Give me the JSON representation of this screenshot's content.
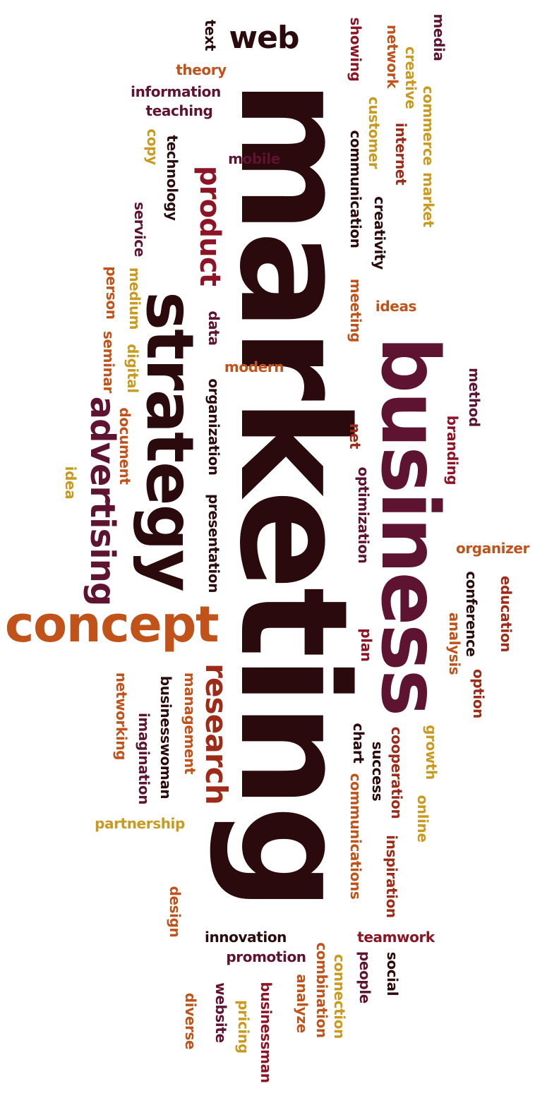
{
  "palette": {
    "black": "#2a0a0c",
    "maroon": "#5e1430",
    "crimson": "#8c1424",
    "red": "#9e2a18",
    "orange": "#c0521a",
    "gold": "#c99a1f"
  },
  "words": [
    {
      "text": "marketing",
      "color": "black",
      "emphasis": "largest"
    },
    {
      "text": "business",
      "color": "maroon",
      "emphasis": "large"
    },
    {
      "text": "strategy",
      "color": "black",
      "emphasis": "large"
    },
    {
      "text": "concept",
      "color": "orange",
      "emphasis": "large"
    },
    {
      "text": "advertising",
      "color": "maroon",
      "emphasis": "medium"
    },
    {
      "text": "research",
      "color": "red",
      "emphasis": "medium"
    },
    {
      "text": "product",
      "color": "crimson",
      "emphasis": "medium"
    },
    {
      "text": "web",
      "color": "black",
      "emphasis": "medium"
    },
    {
      "text": "media",
      "color": "maroon"
    },
    {
      "text": "network",
      "color": "orange"
    },
    {
      "text": "creative",
      "color": "gold"
    },
    {
      "text": "showing",
      "color": "crimson"
    },
    {
      "text": "text",
      "color": "black"
    },
    {
      "text": "commerce",
      "color": "gold"
    },
    {
      "text": "market",
      "color": "gold"
    },
    {
      "text": "internet",
      "color": "red"
    },
    {
      "text": "customer",
      "color": "gold"
    },
    {
      "text": "communication",
      "color": "black"
    },
    {
      "text": "creativity",
      "color": "black"
    },
    {
      "text": "theory",
      "color": "orange"
    },
    {
      "text": "information",
      "color": "maroon"
    },
    {
      "text": "teaching",
      "color": "maroon"
    },
    {
      "text": "copy",
      "color": "gold"
    },
    {
      "text": "technology",
      "color": "black"
    },
    {
      "text": "mobile",
      "color": "maroon"
    },
    {
      "text": "service",
      "color": "maroon"
    },
    {
      "text": "person",
      "color": "orange"
    },
    {
      "text": "medium",
      "color": "gold"
    },
    {
      "text": "data",
      "color": "maroon"
    },
    {
      "text": "meeting",
      "color": "orange"
    },
    {
      "text": "ideas",
      "color": "orange"
    },
    {
      "text": "seminar",
      "color": "orange"
    },
    {
      "text": "digital",
      "color": "gold"
    },
    {
      "text": "modern",
      "color": "orange"
    },
    {
      "text": "method",
      "color": "maroon"
    },
    {
      "text": "organization",
      "color": "black"
    },
    {
      "text": "branding",
      "color": "crimson"
    },
    {
      "text": "document",
      "color": "orange"
    },
    {
      "text": "net",
      "color": "red"
    },
    {
      "text": "optimization",
      "color": "maroon"
    },
    {
      "text": "idea",
      "color": "gold"
    },
    {
      "text": "presentation",
      "color": "black"
    },
    {
      "text": "organizer",
      "color": "orange"
    },
    {
      "text": "conference",
      "color": "black"
    },
    {
      "text": "education",
      "color": "red"
    },
    {
      "text": "analysis",
      "color": "orange"
    },
    {
      "text": "plan",
      "color": "crimson"
    },
    {
      "text": "option",
      "color": "red"
    },
    {
      "text": "businesswoman",
      "color": "black"
    },
    {
      "text": "management",
      "color": "orange"
    },
    {
      "text": "networking",
      "color": "orange"
    },
    {
      "text": "imagination",
      "color": "maroon"
    },
    {
      "text": "chart",
      "color": "black"
    },
    {
      "text": "cooperation",
      "color": "red"
    },
    {
      "text": "success",
      "color": "black"
    },
    {
      "text": "growth",
      "color": "gold"
    },
    {
      "text": "communications",
      "color": "orange"
    },
    {
      "text": "online",
      "color": "gold"
    },
    {
      "text": "partnership",
      "color": "gold"
    },
    {
      "text": "inspiration",
      "color": "red"
    },
    {
      "text": "design",
      "color": "orange"
    },
    {
      "text": "innovation",
      "color": "black"
    },
    {
      "text": "teamwork",
      "color": "crimson"
    },
    {
      "text": "promotion",
      "color": "maroon"
    },
    {
      "text": "combination",
      "color": "orange"
    },
    {
      "text": "connection",
      "color": "gold"
    },
    {
      "text": "people",
      "color": "maroon"
    },
    {
      "text": "social",
      "color": "black"
    },
    {
      "text": "website",
      "color": "maroon"
    },
    {
      "text": "businessman",
      "color": "crimson"
    },
    {
      "text": "analyze",
      "color": "orange"
    },
    {
      "text": "pricing",
      "color": "gold"
    },
    {
      "text": "diverse",
      "color": "orange"
    }
  ]
}
